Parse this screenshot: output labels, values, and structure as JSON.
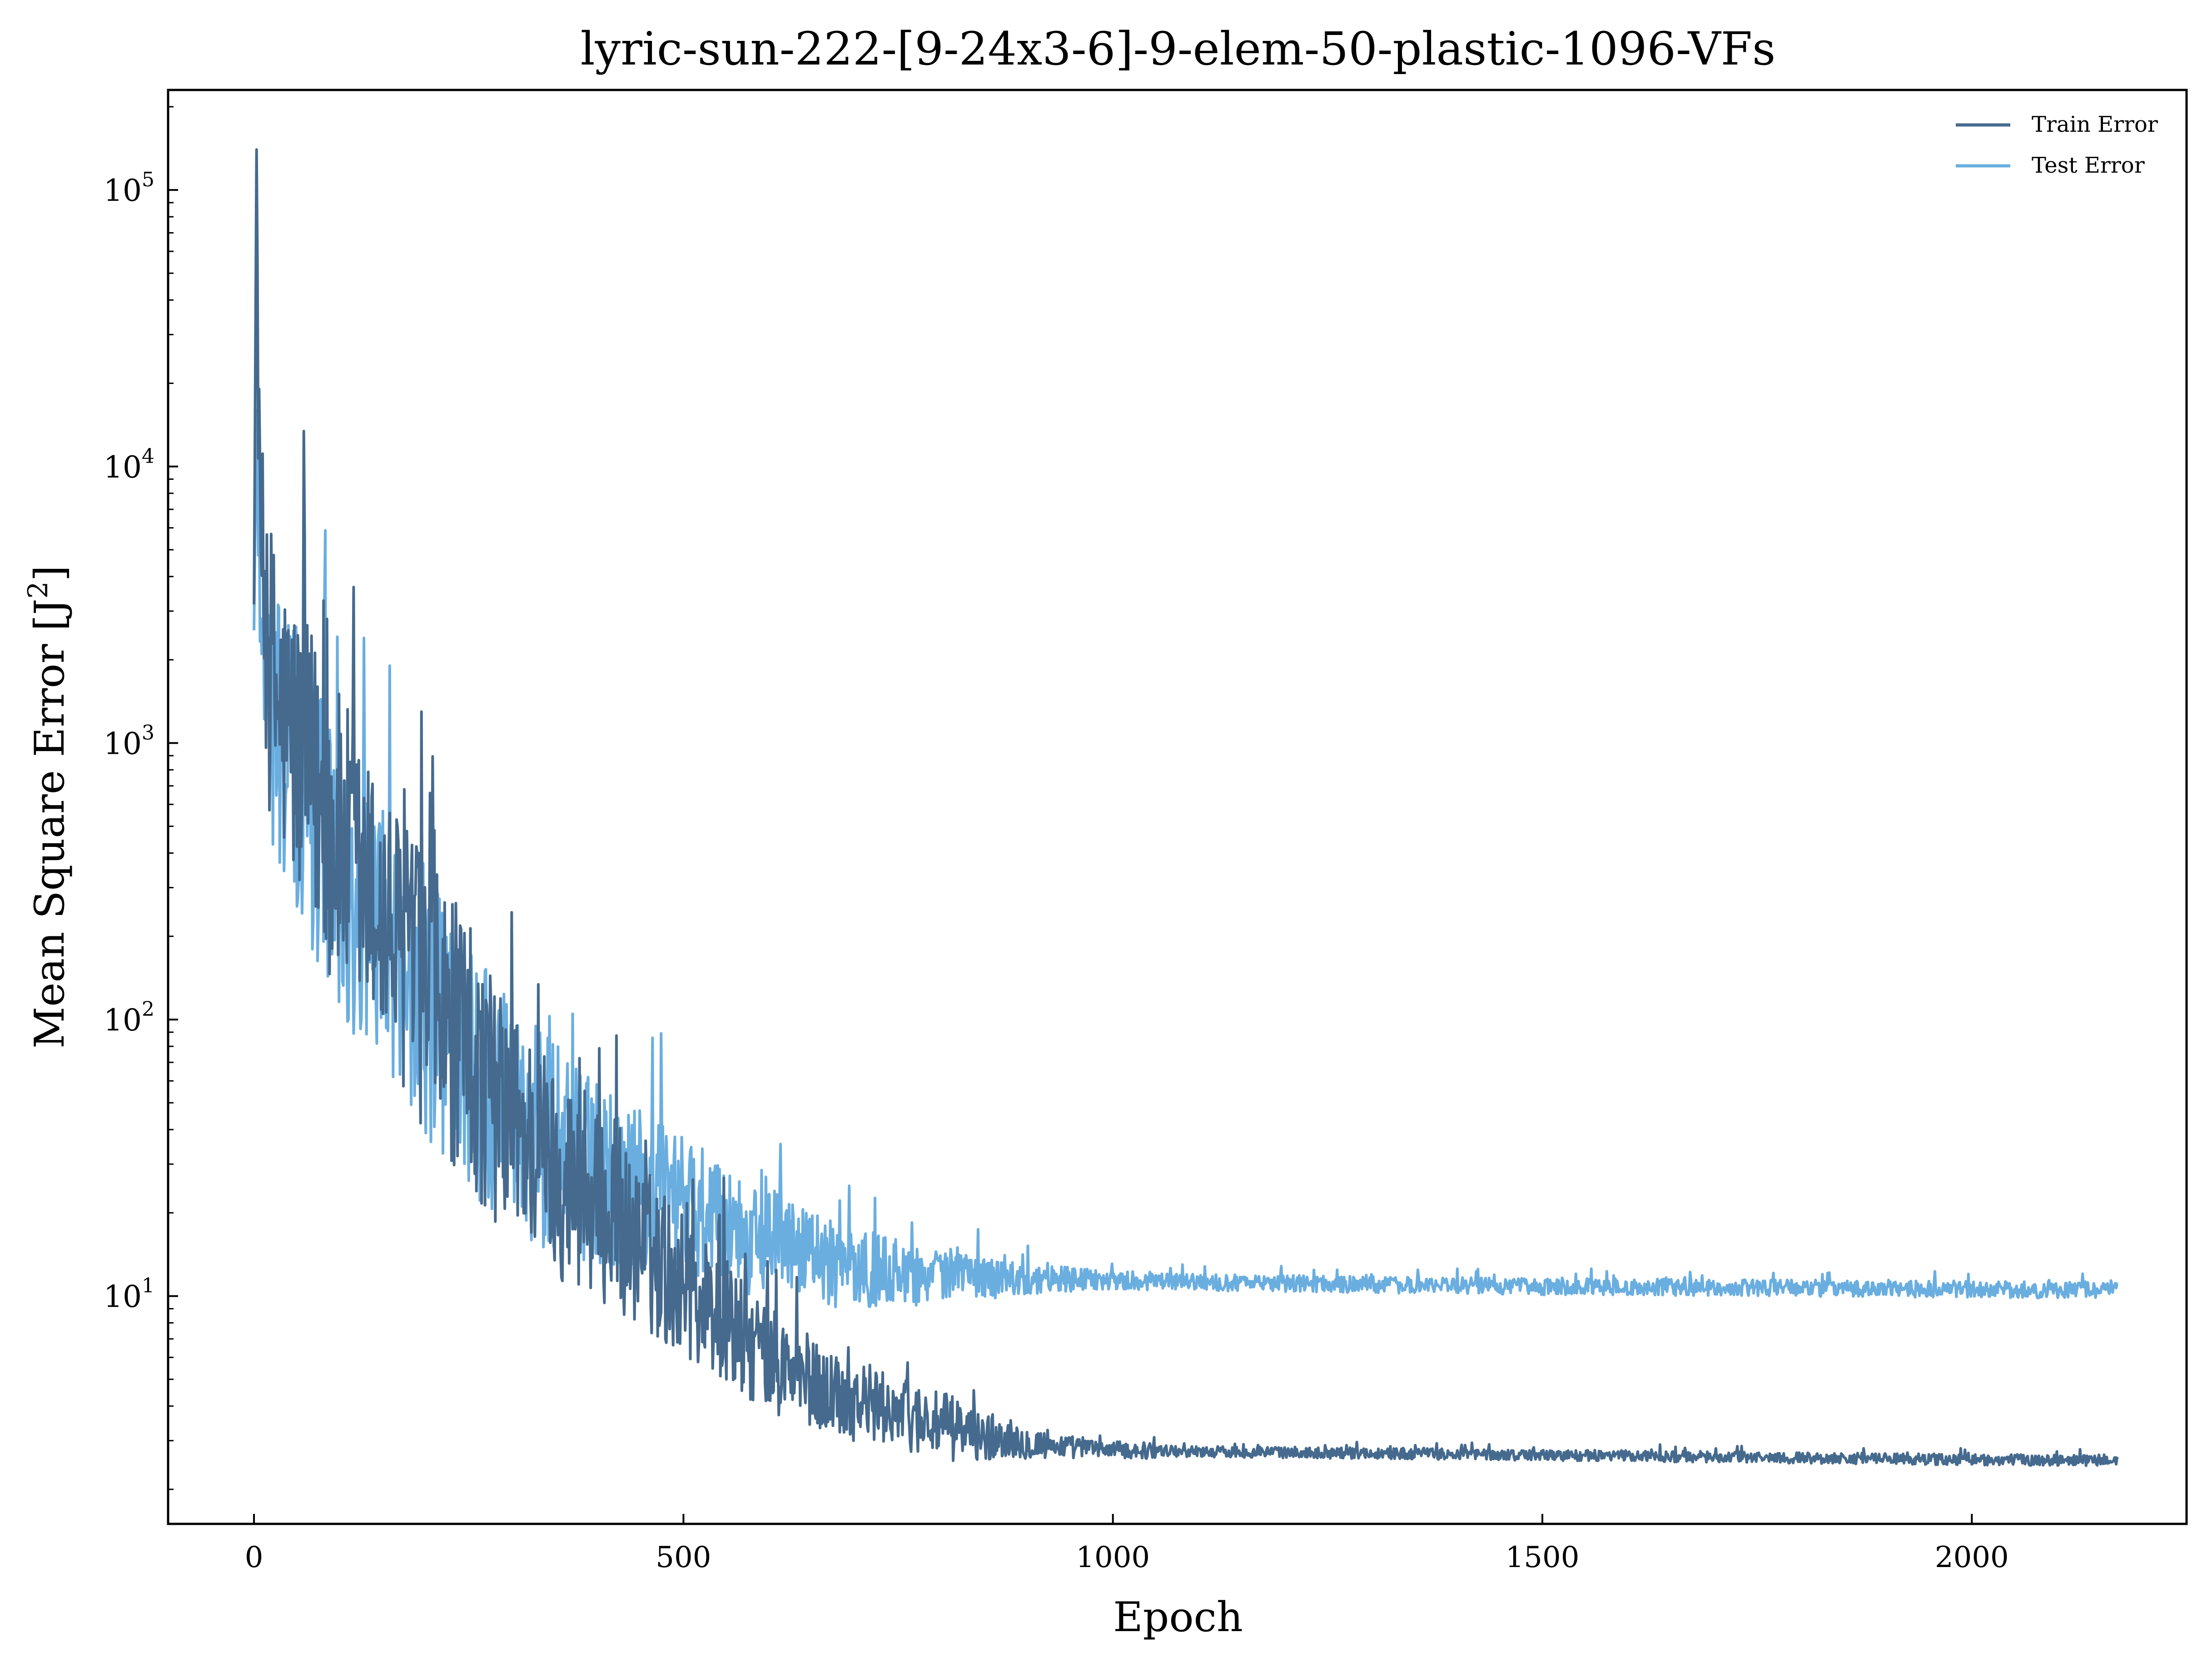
{
  "chart_data": {
    "type": "line",
    "title": "lyric-sun-222-[9-24x3-6]-9-elem-50-plastic-1096-VFs",
    "xlabel": "Epoch",
    "ylabel_text": "Mean Square Error [J",
    "ylabel_sup": "2",
    "ylabel_close": "]",
    "xlim": [
      -100,
      2250
    ],
    "ylim": [
      1.5,
      230000
    ],
    "yscale": "log",
    "grid": false,
    "legend_position": "top-right",
    "x_ticks": [
      {
        "value": 0,
        "label": "0"
      },
      {
        "value": 500,
        "label": "500"
      },
      {
        "value": 1000,
        "label": "1000"
      },
      {
        "value": 1500,
        "label": "1500"
      },
      {
        "value": 2000,
        "label": "2000"
      }
    ],
    "y_ticks": [
      {
        "value": 10,
        "base": "10",
        "exp": "1"
      },
      {
        "value": 100,
        "base": "10",
        "exp": "2"
      },
      {
        "value": 1000,
        "base": "10",
        "exp": "3"
      },
      {
        "value": 10000,
        "base": "10",
        "exp": "4"
      },
      {
        "value": 100000,
        "base": "10",
        "exp": "5"
      }
    ],
    "series": [
      {
        "name": "Train Error",
        "color": "#456a8e",
        "x": [
          0,
          3,
          6,
          10,
          15,
          20,
          25,
          30,
          40,
          50,
          60,
          70,
          80,
          90,
          100,
          110,
          120,
          130,
          140,
          150,
          170,
          190,
          210,
          230,
          250,
          270,
          300,
          330,
          360,
          390,
          420,
          450,
          480,
          510,
          540,
          570,
          600,
          630,
          660,
          700,
          750,
          800,
          850,
          900,
          950,
          1000,
          1100,
          1200,
          1300,
          1400,
          1500,
          1600,
          1700,
          1800,
          1900,
          2000,
          2100,
          2170
        ],
        "y": [
          3000,
          140000,
          9000,
          4000,
          2200,
          1800,
          1500,
          1300,
          1100,
          950,
          800,
          700,
          600,
          480,
          430,
          380,
          320,
          290,
          260,
          220,
          180,
          140,
          110,
          90,
          70,
          56,
          44,
          34,
          27,
          22,
          18,
          15,
          12.5,
          10.5,
          8.5,
          7,
          6,
          5.2,
          4.6,
          4.2,
          3.8,
          3.4,
          3.1,
          2.95,
          2.85,
          2.78,
          2.74,
          2.72,
          2.7,
          2.68,
          2.66,
          2.64,
          2.62,
          2.6,
          2.58,
          2.56,
          2.55,
          2.55
        ],
        "noise": [
          0.1,
          0.0,
          0.35,
          0.45,
          0.5,
          0.55,
          0.55,
          0.55,
          0.55,
          0.55,
          0.55,
          0.55,
          0.55,
          0.55,
          0.55,
          0.55,
          0.55,
          0.5,
          0.5,
          0.5,
          0.5,
          0.5,
          0.5,
          0.5,
          0.45,
          0.45,
          0.4,
          0.4,
          0.38,
          0.35,
          0.32,
          0.3,
          0.28,
          0.26,
          0.24,
          0.22,
          0.2,
          0.18,
          0.16,
          0.15,
          0.13,
          0.12,
          0.09,
          0.06,
          0.04,
          0.03,
          0.02,
          0.02,
          0.02,
          0.02,
          0.02,
          0.02,
          0.02,
          0.02,
          0.02,
          0.02,
          0.02,
          0.02
        ]
      },
      {
        "name": "Test Error",
        "color": "#6aaee0",
        "x": [
          0,
          3,
          6,
          10,
          15,
          20,
          25,
          30,
          40,
          50,
          60,
          70,
          80,
          90,
          100,
          110,
          120,
          130,
          140,
          150,
          170,
          190,
          210,
          230,
          250,
          270,
          300,
          330,
          360,
          390,
          420,
          450,
          480,
          510,
          540,
          570,
          600,
          630,
          660,
          700,
          750,
          800,
          850,
          900,
          950,
          1000,
          1100,
          1200,
          1300,
          1400,
          1500,
          1600,
          1700,
          1800,
          1900,
          2000,
          2100,
          2170
        ],
        "y": [
          2500,
          16000,
          5000,
          3000,
          2000,
          1500,
          1300,
          1100,
          900,
          750,
          600,
          520,
          450,
          400,
          350,
          300,
          260,
          230,
          200,
          180,
          150,
          120,
          95,
          80,
          66,
          55,
          45,
          38,
          33,
          29,
          26,
          24,
          22,
          20,
          18.5,
          17,
          15.5,
          14.5,
          13.5,
          12.8,
          12.3,
          12,
          11.8,
          11.6,
          11.5,
          11.4,
          11.2,
          11.1,
          11,
          10.9,
          10.8,
          10.8,
          10.7,
          10.7,
          10.6,
          10.6,
          10.5,
          10.6
        ],
        "noise": [
          0.1,
          0.0,
          0.35,
          0.45,
          0.5,
          0.55,
          0.55,
          0.55,
          0.55,
          0.55,
          0.55,
          0.55,
          0.55,
          0.55,
          0.55,
          0.55,
          0.55,
          0.5,
          0.5,
          0.5,
          0.5,
          0.5,
          0.5,
          0.5,
          0.48,
          0.45,
          0.42,
          0.4,
          0.38,
          0.35,
          0.32,
          0.3,
          0.28,
          0.26,
          0.24,
          0.22,
          0.2,
          0.18,
          0.16,
          0.14,
          0.12,
          0.1,
          0.08,
          0.06,
          0.045,
          0.035,
          0.03,
          0.03,
          0.03,
          0.03,
          0.03,
          0.03,
          0.03,
          0.03,
          0.03,
          0.03,
          0.03,
          0.03
        ]
      }
    ]
  }
}
